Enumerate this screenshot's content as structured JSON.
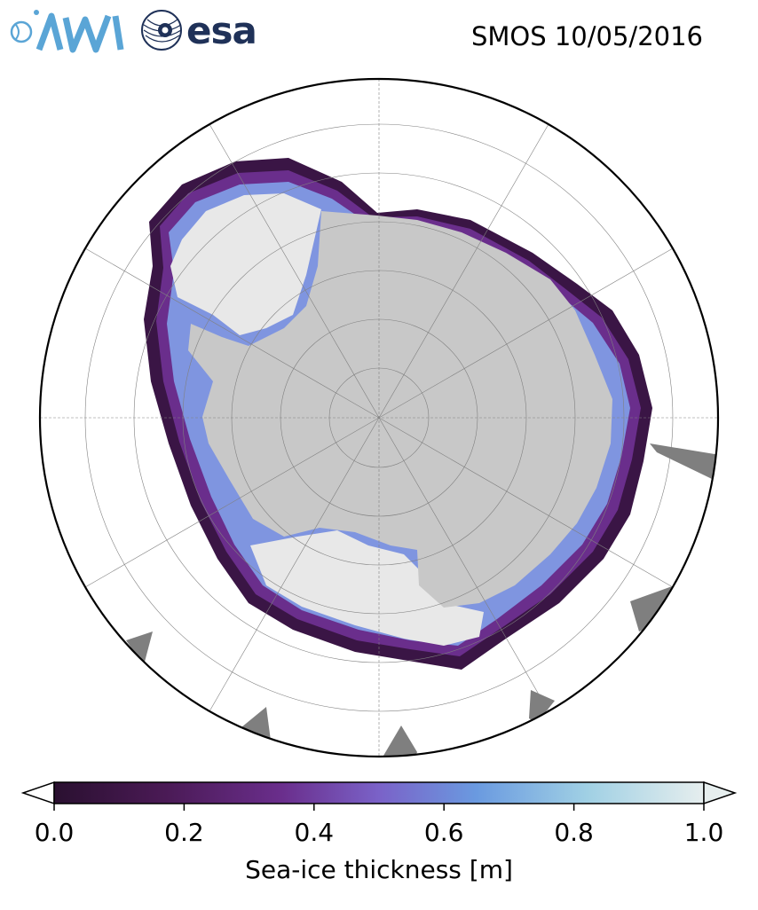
{
  "header": {
    "logo_awi_text": "AWI",
    "logo_esa_text": "esa",
    "title": "SMOS 10/05/2016"
  },
  "map": {
    "projection": "south-polar-stereographic",
    "colors": {
      "land": "#c8c8c8",
      "thick_ice": "#e8e8e8",
      "no_data": "#7f7f7f",
      "ocean": "#ffffff",
      "graticule": "#808080"
    }
  },
  "colorbar": {
    "label": "Sea-ice thickness [m]",
    "ticks": [
      "0.0",
      "0.2",
      "0.4",
      "0.6",
      "0.8",
      "1.0"
    ],
    "min": 0.0,
    "max": 1.0,
    "extend": "both",
    "colormap_stops": [
      "#2a1030",
      "#4a1a55",
      "#6a2e8c",
      "#7a62c8",
      "#6a9ae0",
      "#a0d0e4",
      "#e6eeee"
    ]
  }
}
